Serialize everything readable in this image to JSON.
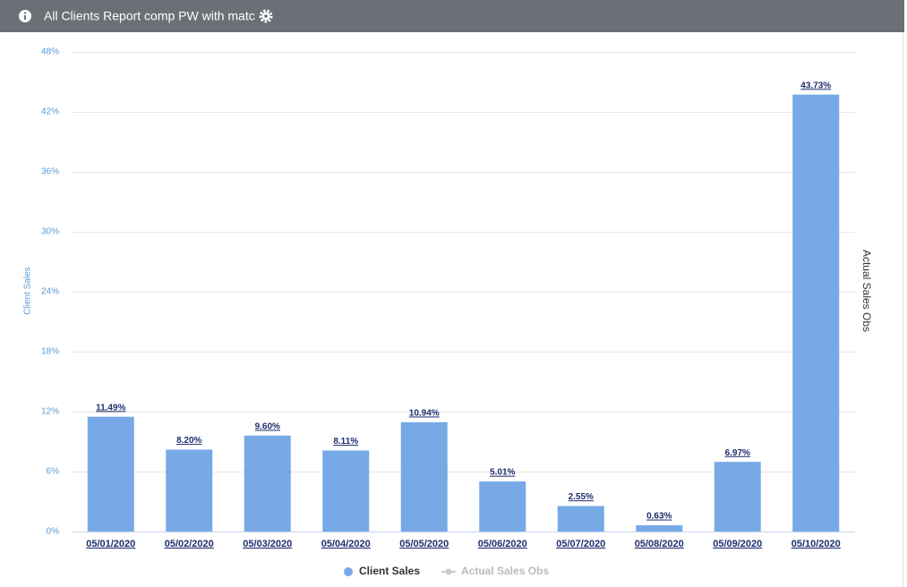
{
  "header": {
    "title": "All Clients Report comp PW with matc"
  },
  "chart_data": {
    "type": "bar",
    "categories": [
      "05/01/2020",
      "05/02/2020",
      "05/03/2020",
      "05/04/2020",
      "05/05/2020",
      "05/06/2020",
      "05/07/2020",
      "05/08/2020",
      "05/09/2020",
      "05/10/2020"
    ],
    "series": [
      {
        "name": "Client Sales",
        "color": "#77a9e6",
        "values": [
          11.49,
          8.2,
          9.6,
          8.11,
          10.94,
          5.01,
          2.55,
          0.63,
          6.97,
          43.73
        ],
        "value_labels": [
          "11.49%",
          "8.20%",
          "9.60%",
          "8.11%",
          "10.94%",
          "5.01%",
          "2.55%",
          "0.63%",
          "6.97%",
          "43.73%"
        ]
      },
      {
        "name": "Actual Sales Obs",
        "color": "#cccccc",
        "axis": "y2",
        "values": [
          null,
          null,
          null,
          null,
          null,
          null,
          null,
          null,
          null,
          null
        ]
      }
    ],
    "y_label": "Client Sales",
    "y2_label": "Actual Sales Obs",
    "ylim": [
      0,
      48
    ],
    "yticks": [
      {
        "value": 0,
        "label": "0%"
      },
      {
        "value": 6,
        "label": "6%"
      },
      {
        "value": 12,
        "label": "12%"
      },
      {
        "value": 18,
        "label": "18%"
      },
      {
        "value": 24,
        "label": "24%"
      },
      {
        "value": 30,
        "label": "30%"
      },
      {
        "value": 36,
        "label": "36%"
      },
      {
        "value": 42,
        "label": "42%"
      },
      {
        "value": 48,
        "label": "48%"
      }
    ],
    "grid": true
  }
}
